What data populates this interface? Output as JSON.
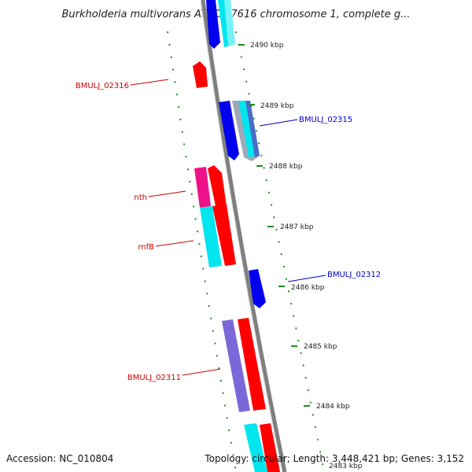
{
  "title": "Burkholderia multivorans ATCC 17616 chromosome 1, complete g...",
  "accession": "Accession: NC_010804",
  "topology": "Topology: circular; Length: 3,448,421 bp; Genes: 3,152",
  "colors": {
    "backbone": "#7f7f7f",
    "tick": "#228b22",
    "gene_red": "#ff0000",
    "gene_blue": "#0000ee",
    "gene_cyan": "#00e5ee",
    "gene_pink": "#ee1289",
    "gene_slate": "#7b68d8",
    "gene_grey": "#a0a8b8"
  },
  "ticks": [
    {
      "label": "2490 kbp"
    },
    {
      "label": "2489 kbp"
    },
    {
      "label": "2488 kbp"
    },
    {
      "label": "2487 kbp"
    },
    {
      "label": "2486 kbp"
    },
    {
      "label": "2485 kbp"
    },
    {
      "label": "2484 kbp"
    },
    {
      "label": "2483 kbp"
    }
  ],
  "gene_labels": [
    {
      "id": "BMULJ_02316",
      "text": "BMULJ_02316",
      "color": "#cc0000"
    },
    {
      "id": "BMULJ_02315",
      "text": "BMULJ_02315",
      "color": "#0000cc"
    },
    {
      "id": "nth",
      "text": "nth",
      "color": "#cc0000"
    },
    {
      "id": "rnfB",
      "text": "rnfB",
      "color": "#cc0000"
    },
    {
      "id": "BMULJ_02312",
      "text": "BMULJ_02312",
      "color": "#0000cc"
    },
    {
      "id": "BMULJ_02311",
      "text": "BMULJ_02311",
      "color": "#cc0000"
    }
  ]
}
